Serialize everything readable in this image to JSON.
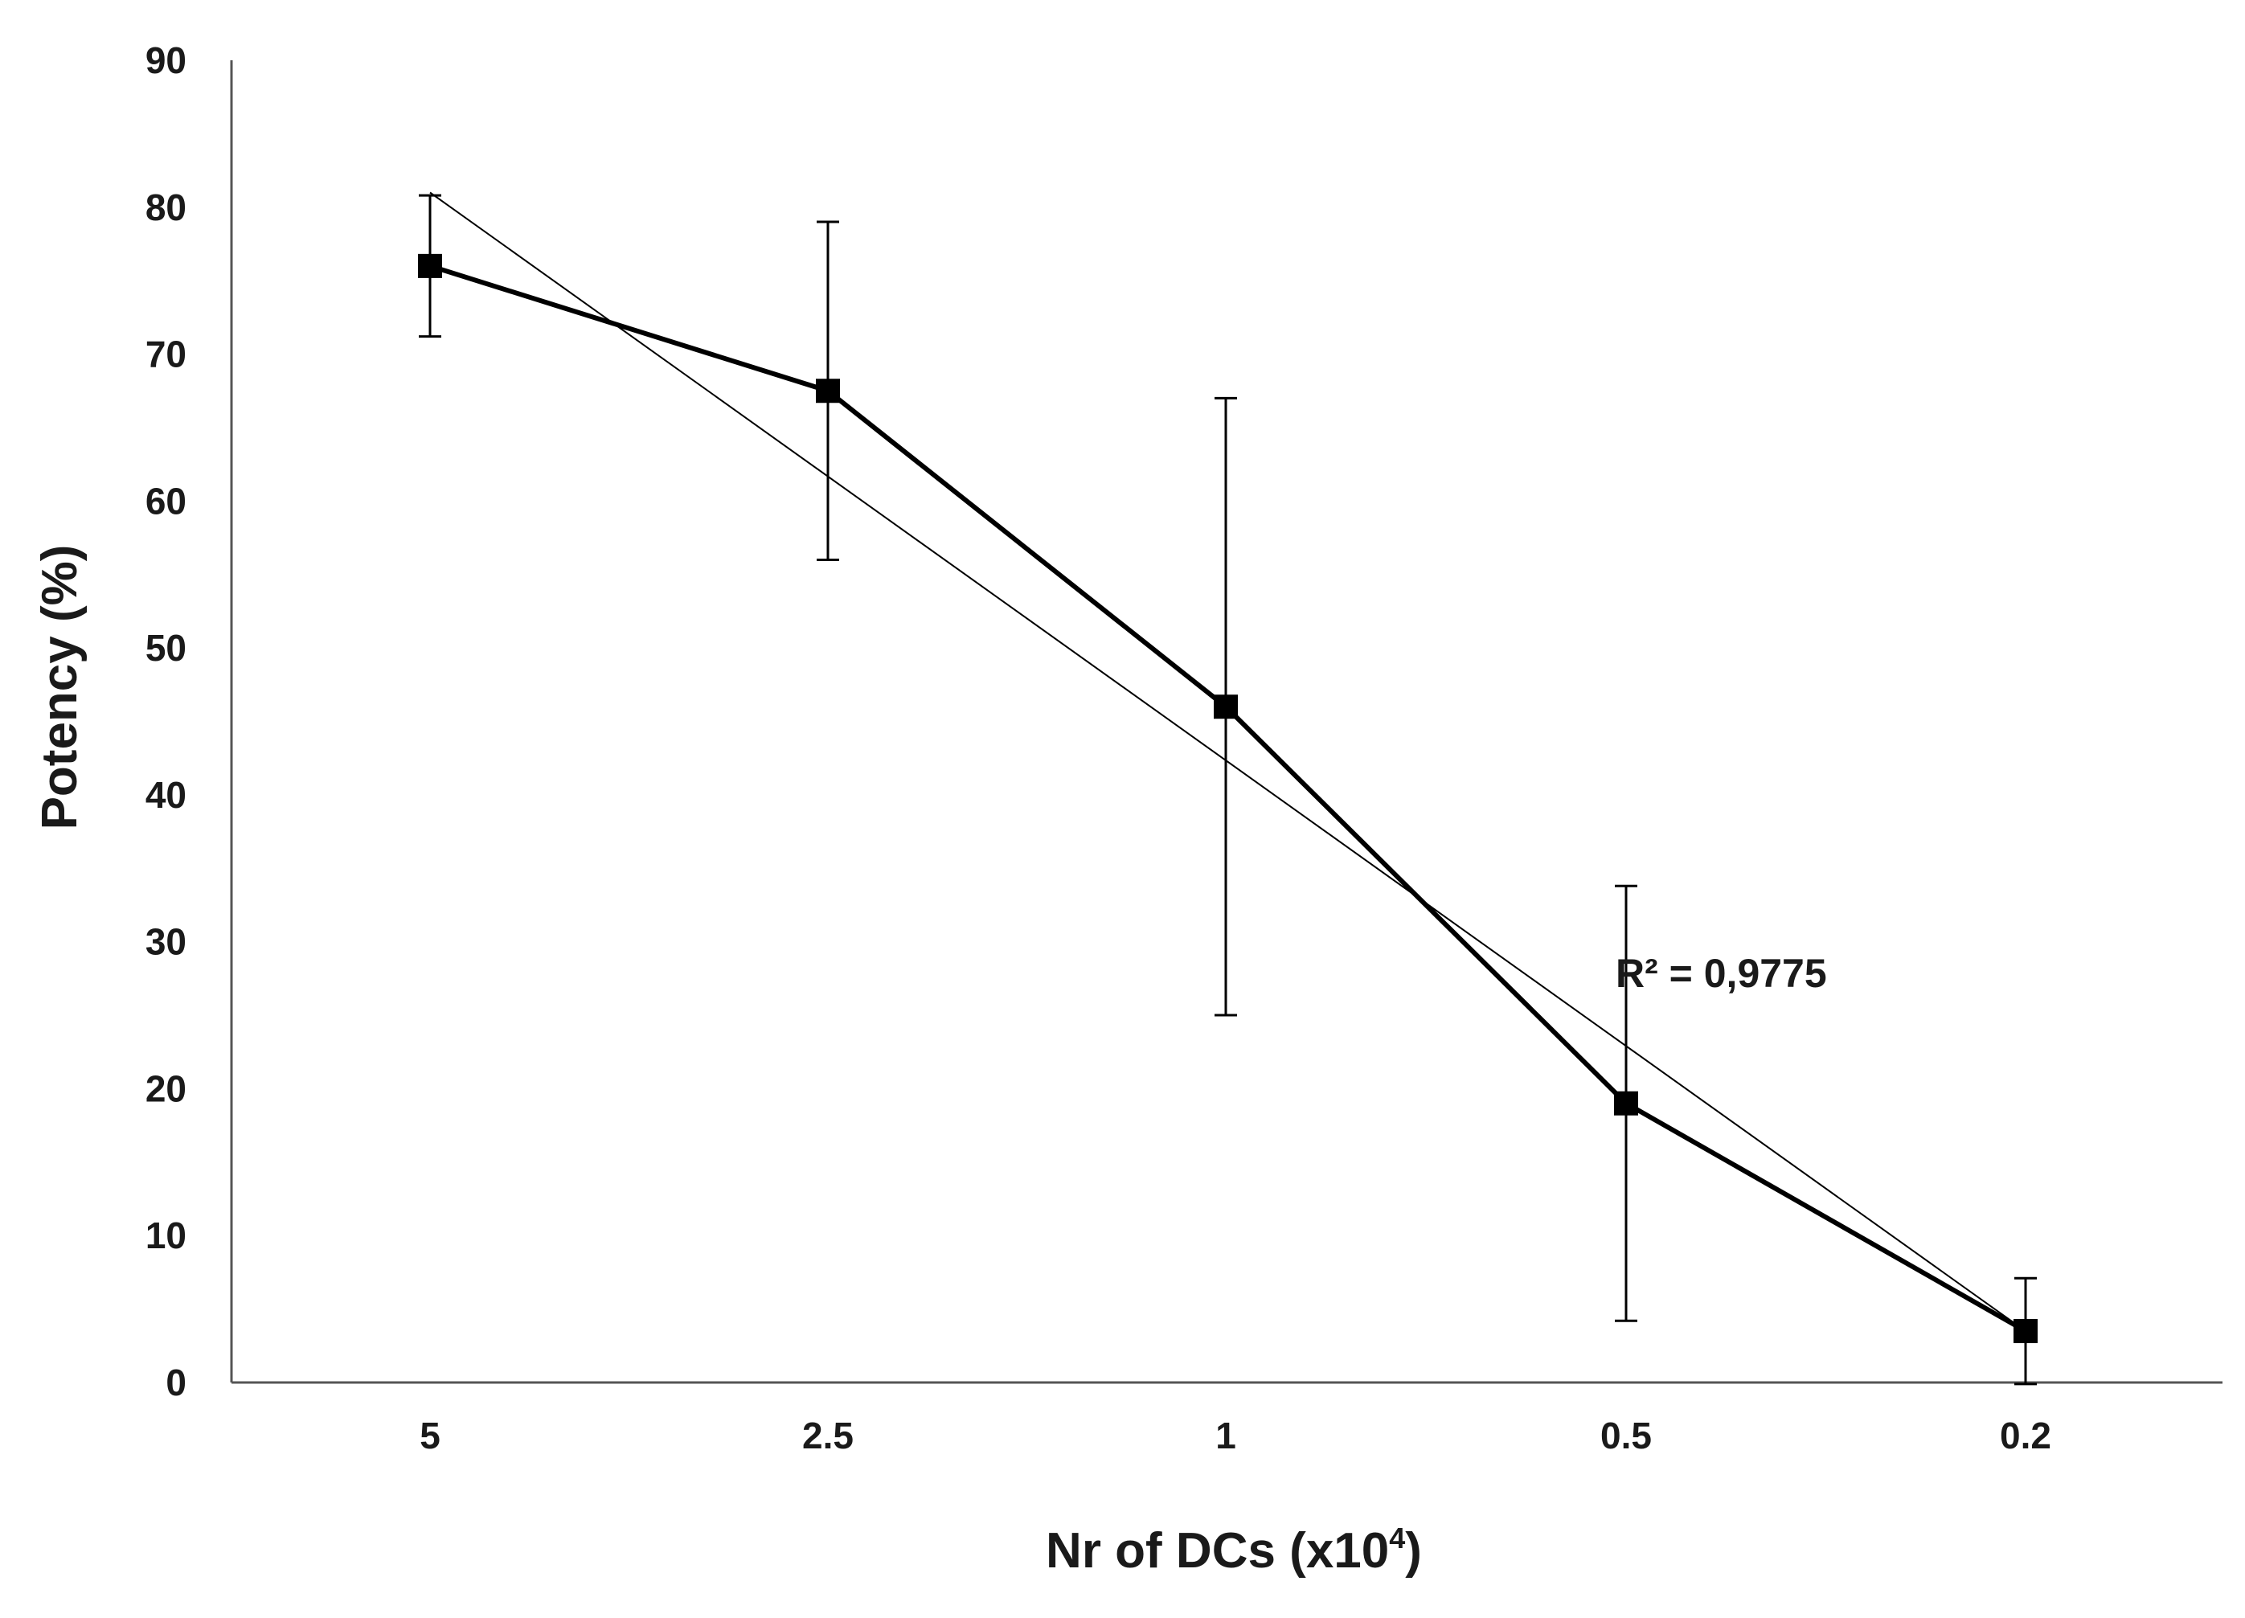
{
  "chart_data": {
    "type": "line",
    "title": "",
    "xlabel": "Nr of DCs (x10",
    "xlabel_sup": "4",
    "xlabel_close": ")",
    "ylabel": "Potency (%)",
    "categories": [
      "5",
      "2.5",
      "1",
      "0.5",
      "0.2"
    ],
    "ylim": [
      0,
      90
    ],
    "yticks": [
      0,
      10,
      20,
      30,
      40,
      50,
      60,
      70,
      80,
      90
    ],
    "series": [
      {
        "name": "Potency",
        "marker": "square",
        "values": [
          76,
          67.5,
          46,
          19,
          3.5
        ],
        "error": [
          4.8,
          11.5,
          21,
          14.8,
          3.6
        ]
      }
    ],
    "trendline": {
      "type": "linear",
      "start": 81,
      "end": 3.5
    },
    "annotation": "R² = 0,9775",
    "grid": false,
    "legend": "none",
    "colors": {
      "line": "#000000",
      "text": "#1a1a1a",
      "axis": "#555555"
    }
  }
}
